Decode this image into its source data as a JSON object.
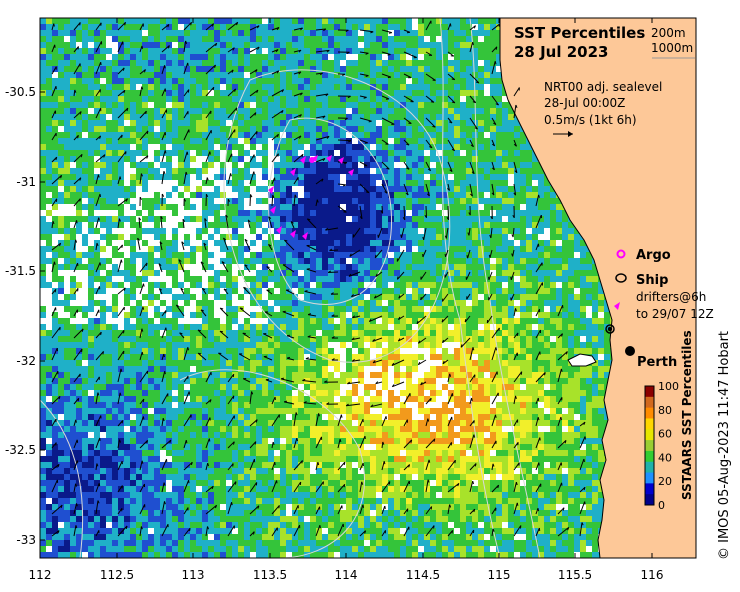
{
  "title": {
    "line1": "SST Percentiles",
    "line2": "28 Jul 2023"
  },
  "contours": {
    "c200": "200m",
    "c1000": "1000m"
  },
  "currents": {
    "line1": "NRT00 adj. sealevel",
    "line2": "28-Jul 00:00Z",
    "line3": "0.5m/s (1kt 6h)"
  },
  "legend": {
    "argo": "Argo",
    "ship": "Ship",
    "drifters1": "drifters@6h",
    "drifters2": "to 29/07 12Z"
  },
  "city": "Perth",
  "colorbar": {
    "label": "SSTAARS SST Percentiles",
    "ticks": [
      "100",
      "80",
      "60",
      "40",
      "20",
      "0"
    ],
    "colors": [
      "#8b0000",
      "#d2691e",
      "#ff8c00",
      "#ffd700",
      "#e6e600",
      "#9acd32",
      "#32cd32",
      "#20b2aa",
      "#1e90ff",
      "#0000cd",
      "#00008b"
    ]
  },
  "axes": {
    "x_ticks": [
      "112",
      "112.5",
      "113",
      "113.5",
      "114",
      "114.5",
      "115",
      "115.5",
      "116"
    ],
    "y_ticks": [
      "-30.5",
      "-31",
      "-31.5",
      "-32",
      "-32.5",
      "-33"
    ]
  },
  "credit": "© IMOS 05-Aug-2023 11:47 Hobart",
  "colors": {
    "land": "#fdc898",
    "deep_blue": "#0a1a8a",
    "blue": "#1f4fd0",
    "cyan": "#1fb0c8",
    "green": "#34c43a",
    "lime": "#a8e22a",
    "yellow": "#f2ef2a",
    "orange": "#f29a1c",
    "argo": "#ff00ff"
  }
}
